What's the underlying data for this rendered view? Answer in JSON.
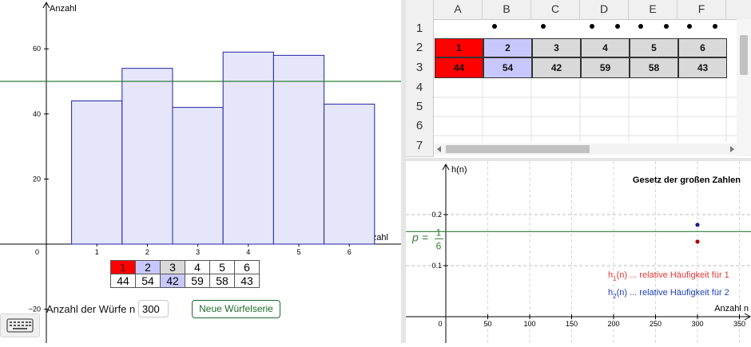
{
  "colors": {
    "bar_fill": "#e5e6f9",
    "bar_stroke": "#2222aa",
    "expected_line": "#2e7d32",
    "highlight_red": "#ff0000",
    "highlight_lavender": "#c8c8ff",
    "highlight_gray": "#d9d9d9",
    "point_red": "#b00000",
    "point_blue": "#1a237e"
  },
  "histogram": {
    "y_axis_label": "Anzahl",
    "x_axis_label": "Augenzahl",
    "origin_label": "0",
    "y_ticks": [
      "60",
      "40",
      "20",
      "−20"
    ],
    "x_ticks": [
      "1",
      "2",
      "3",
      "4",
      "5",
      "6"
    ]
  },
  "chart_data": [
    {
      "type": "bar",
      "title": "",
      "xlabel": "Augenzahl",
      "ylabel": "Anzahl",
      "categories": [
        "1",
        "2",
        "3",
        "4",
        "5",
        "6"
      ],
      "values": [
        44,
        54,
        42,
        59,
        58,
        43
      ],
      "expected_line_y": 50,
      "xlim": [
        -0.9,
        7
      ],
      "ylim": [
        -25,
        74
      ],
      "grid": false
    },
    {
      "type": "scatter",
      "title": "Gesetz der großen Zahlen",
      "xlabel": "Anzahl n",
      "ylabel": "h(n)",
      "x_ticks": [
        "0",
        "50",
        "100",
        "150",
        "200",
        "250",
        "300",
        "350"
      ],
      "y_ticks": [
        "0.2",
        "0.1"
      ],
      "xlim": [
        -4,
        350
      ],
      "ylim": [
        -0.17,
        0.31
      ],
      "grid": true,
      "reference_line": {
        "label_p": "p",
        "label_eq": "=",
        "numerator": "1",
        "denominator": "6",
        "y": 0.1667
      },
      "series": [
        {
          "name": "h1(n) ... relative Häufigkeit für 1",
          "points": [
            [
              300,
              0.147
            ]
          ],
          "color": "#b00000"
        },
        {
          "name": "h2(n) ... relative Häufigkeit für 2",
          "points": [
            [
              300,
              0.18
            ]
          ],
          "color": "#1a237e"
        }
      ]
    }
  ],
  "value_table": {
    "faces": [
      "1",
      "2",
      "3",
      "4",
      "5",
      "6"
    ],
    "counts": [
      "44",
      "54",
      "42",
      "59",
      "58",
      "43"
    ]
  },
  "controls": {
    "n_label": "Anzahl der Würfe n =",
    "n_value": "300",
    "new_series_label": "Neue Würfelserie"
  },
  "spreadsheet": {
    "columns": [
      "A",
      "B",
      "C",
      "D",
      "E",
      "F"
    ],
    "rows": [
      "1",
      "2",
      "3",
      "4",
      "5",
      "6",
      "7"
    ],
    "row2": [
      "1",
      "2",
      "3",
      "4",
      "5",
      "6"
    ],
    "row3": [
      "44",
      "54",
      "42",
      "59",
      "58",
      "43"
    ]
  },
  "right_view": {
    "h_label": "h",
    "h_sub_1": "1",
    "h_sub_2": "2",
    "legend_suffix": "(n) ... relative Häufigkeit für ",
    "legend_1_face": "1",
    "legend_2_face": "2",
    "legend_1_color": "#e53935",
    "legend_2_color": "#1e3fb0"
  }
}
